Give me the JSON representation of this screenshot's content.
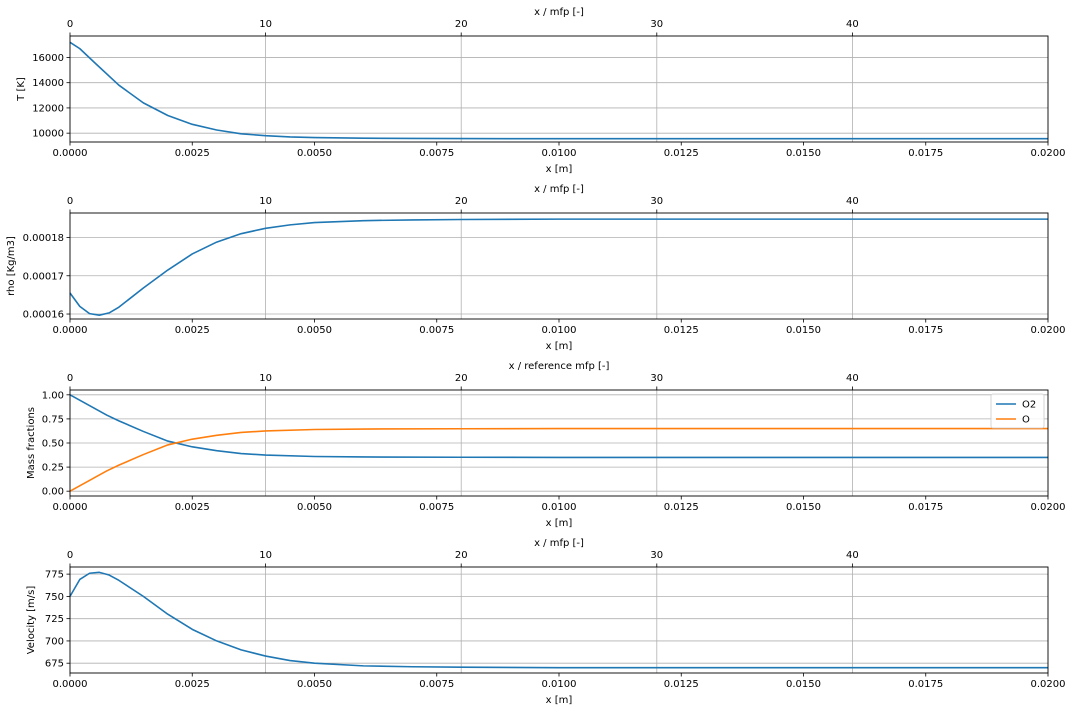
{
  "figure": {
    "background": "#ffffff",
    "grid_color": "#b0b0b0",
    "series_colors": {
      "blue": "#1f77b4",
      "orange": "#ff7f0e"
    }
  },
  "chart_data": [
    {
      "type": "line",
      "ylabel": "T [K]",
      "xlabel": "x [m]",
      "top_xlabel": "x / mfp [-]",
      "xlim": [
        0,
        0.02
      ],
      "ylim": [
        9300,
        17700
      ],
      "x_ticks": [
        "0.0000",
        "0.0025",
        "0.0050",
        "0.0075",
        "0.0100",
        "0.0125",
        "0.0150",
        "0.0175",
        "0.0200"
      ],
      "top_ticks": [
        "0",
        "10",
        "20",
        "30",
        "40"
      ],
      "top_tick_x": [
        0,
        0.004,
        0.008,
        0.012,
        0.016
      ],
      "y_ticks": [
        10000,
        12000,
        14000,
        16000
      ],
      "y_tick_labels": [
        "10000",
        "12000",
        "14000",
        "16000"
      ],
      "grid": true,
      "series": [
        {
          "color": "#1f77b4",
          "x": [
            0,
            0.0002,
            0.0005,
            0.001,
            0.0015,
            0.002,
            0.0025,
            0.003,
            0.0035,
            0.004,
            0.0045,
            0.005,
            0.006,
            0.007,
            0.008,
            0.01,
            0.015,
            0.02
          ],
          "y": [
            17200,
            16700,
            15600,
            13800,
            12400,
            11400,
            10700,
            10250,
            9950,
            9800,
            9700,
            9650,
            9600,
            9580,
            9570,
            9560,
            9560,
            9560
          ]
        }
      ]
    },
    {
      "type": "line",
      "ylabel": "rho [Kg/m3]",
      "xlabel": "x [m]",
      "top_xlabel": "x / mfp [-]",
      "xlim": [
        0,
        0.02
      ],
      "ylim": [
        0.0001587,
        0.0001864
      ],
      "x_ticks": [
        "0.0000",
        "0.0025",
        "0.0050",
        "0.0075",
        "0.0100",
        "0.0125",
        "0.0150",
        "0.0175",
        "0.0200"
      ],
      "top_ticks": [
        "0",
        "10",
        "20",
        "30",
        "40"
      ],
      "top_tick_x": [
        0,
        0.004,
        0.008,
        0.012,
        0.016
      ],
      "y_ticks": [
        0.00016,
        0.00017,
        0.00018
      ],
      "y_tick_labels": [
        "0.00016",
        "0.00017",
        "0.00018"
      ],
      "grid": true,
      "series": [
        {
          "color": "#1f77b4",
          "x": [
            0,
            0.0002,
            0.0004,
            0.0006,
            0.0008,
            0.001,
            0.0015,
            0.002,
            0.0025,
            0.003,
            0.0035,
            0.004,
            0.0045,
            0.005,
            0.006,
            0.007,
            0.008,
            0.01,
            0.015,
            0.02
          ],
          "y": [
            0.0001655,
            0.000162,
            0.0001601,
            0.0001597,
            0.0001603,
            0.0001618,
            0.0001668,
            0.0001715,
            0.0001757,
            0.0001788,
            0.000181,
            0.0001824,
            0.0001833,
            0.0001839,
            0.0001844,
            0.0001846,
            0.0001847,
            0.0001848,
            0.0001848,
            0.0001848
          ]
        }
      ]
    },
    {
      "type": "line",
      "ylabel": "Mass fractions",
      "xlabel": "x [m]",
      "top_xlabel": "x / reference mfp [-]",
      "xlim": [
        0,
        0.02
      ],
      "ylim": [
        -0.05,
        1.05
      ],
      "x_ticks": [
        "0.0000",
        "0.0025",
        "0.0050",
        "0.0075",
        "0.0100",
        "0.0125",
        "0.0150",
        "0.0175",
        "0.0200"
      ],
      "top_ticks": [
        "0",
        "10",
        "20",
        "30",
        "40"
      ],
      "top_tick_x": [
        0,
        0.004,
        0.008,
        0.012,
        0.016
      ],
      "y_ticks": [
        0,
        0.25,
        0.5,
        0.75,
        1.0
      ],
      "y_tick_labels": [
        "0.00",
        "0.25",
        "0.50",
        "0.75",
        "1.00"
      ],
      "grid": true,
      "legend": "top-right",
      "series": [
        {
          "name": "O2",
          "color": "#1f77b4",
          "x": [
            0,
            0.00025,
            0.0005,
            0.00075,
            0.001,
            0.0015,
            0.002,
            0.0025,
            0.003,
            0.0035,
            0.004,
            0.005,
            0.006,
            0.008,
            0.01,
            0.015,
            0.02
          ],
          "y": [
            1.0,
            0.93,
            0.86,
            0.79,
            0.73,
            0.62,
            0.52,
            0.46,
            0.42,
            0.39,
            0.375,
            0.36,
            0.355,
            0.352,
            0.35,
            0.35,
            0.35
          ]
        },
        {
          "name": "O",
          "color": "#ff7f0e",
          "x": [
            0,
            0.00025,
            0.0005,
            0.00075,
            0.001,
            0.0015,
            0.002,
            0.0025,
            0.003,
            0.0035,
            0.004,
            0.005,
            0.006,
            0.008,
            0.01,
            0.015,
            0.02
          ],
          "y": [
            0.0,
            0.07,
            0.14,
            0.21,
            0.27,
            0.38,
            0.48,
            0.54,
            0.58,
            0.61,
            0.625,
            0.64,
            0.645,
            0.648,
            0.65,
            0.65,
            0.65
          ]
        }
      ]
    },
    {
      "type": "line",
      "ylabel": "Velocity [m/s]",
      "xlabel": "x [m]",
      "top_xlabel": "x / mfp [-]",
      "xlim": [
        0,
        0.02
      ],
      "ylim": [
        664,
        783
      ],
      "x_ticks": [
        "0.0000",
        "0.0025",
        "0.0050",
        "0.0075",
        "0.0100",
        "0.0125",
        "0.0150",
        "0.0175",
        "0.0200"
      ],
      "top_ticks": [
        "0",
        "10",
        "20",
        "30",
        "40"
      ],
      "top_tick_x": [
        0,
        0.004,
        0.008,
        0.012,
        0.016
      ],
      "y_ticks": [
        675,
        700,
        725,
        750,
        775
      ],
      "y_tick_labels": [
        "675",
        "700",
        "725",
        "750",
        "775"
      ],
      "grid": true,
      "series": [
        {
          "color": "#1f77b4",
          "x": [
            0,
            0.0002,
            0.0004,
            0.0006,
            0.0008,
            0.001,
            0.0015,
            0.002,
            0.0025,
            0.003,
            0.0035,
            0.004,
            0.0045,
            0.005,
            0.006,
            0.007,
            0.008,
            0.01,
            0.015,
            0.02
          ],
          "y": [
            750,
            769,
            776,
            777,
            774,
            768,
            750,
            730,
            713,
            700,
            690,
            683,
            678,
            675,
            672,
            671,
            670.5,
            670,
            670,
            670
          ]
        }
      ]
    }
  ]
}
